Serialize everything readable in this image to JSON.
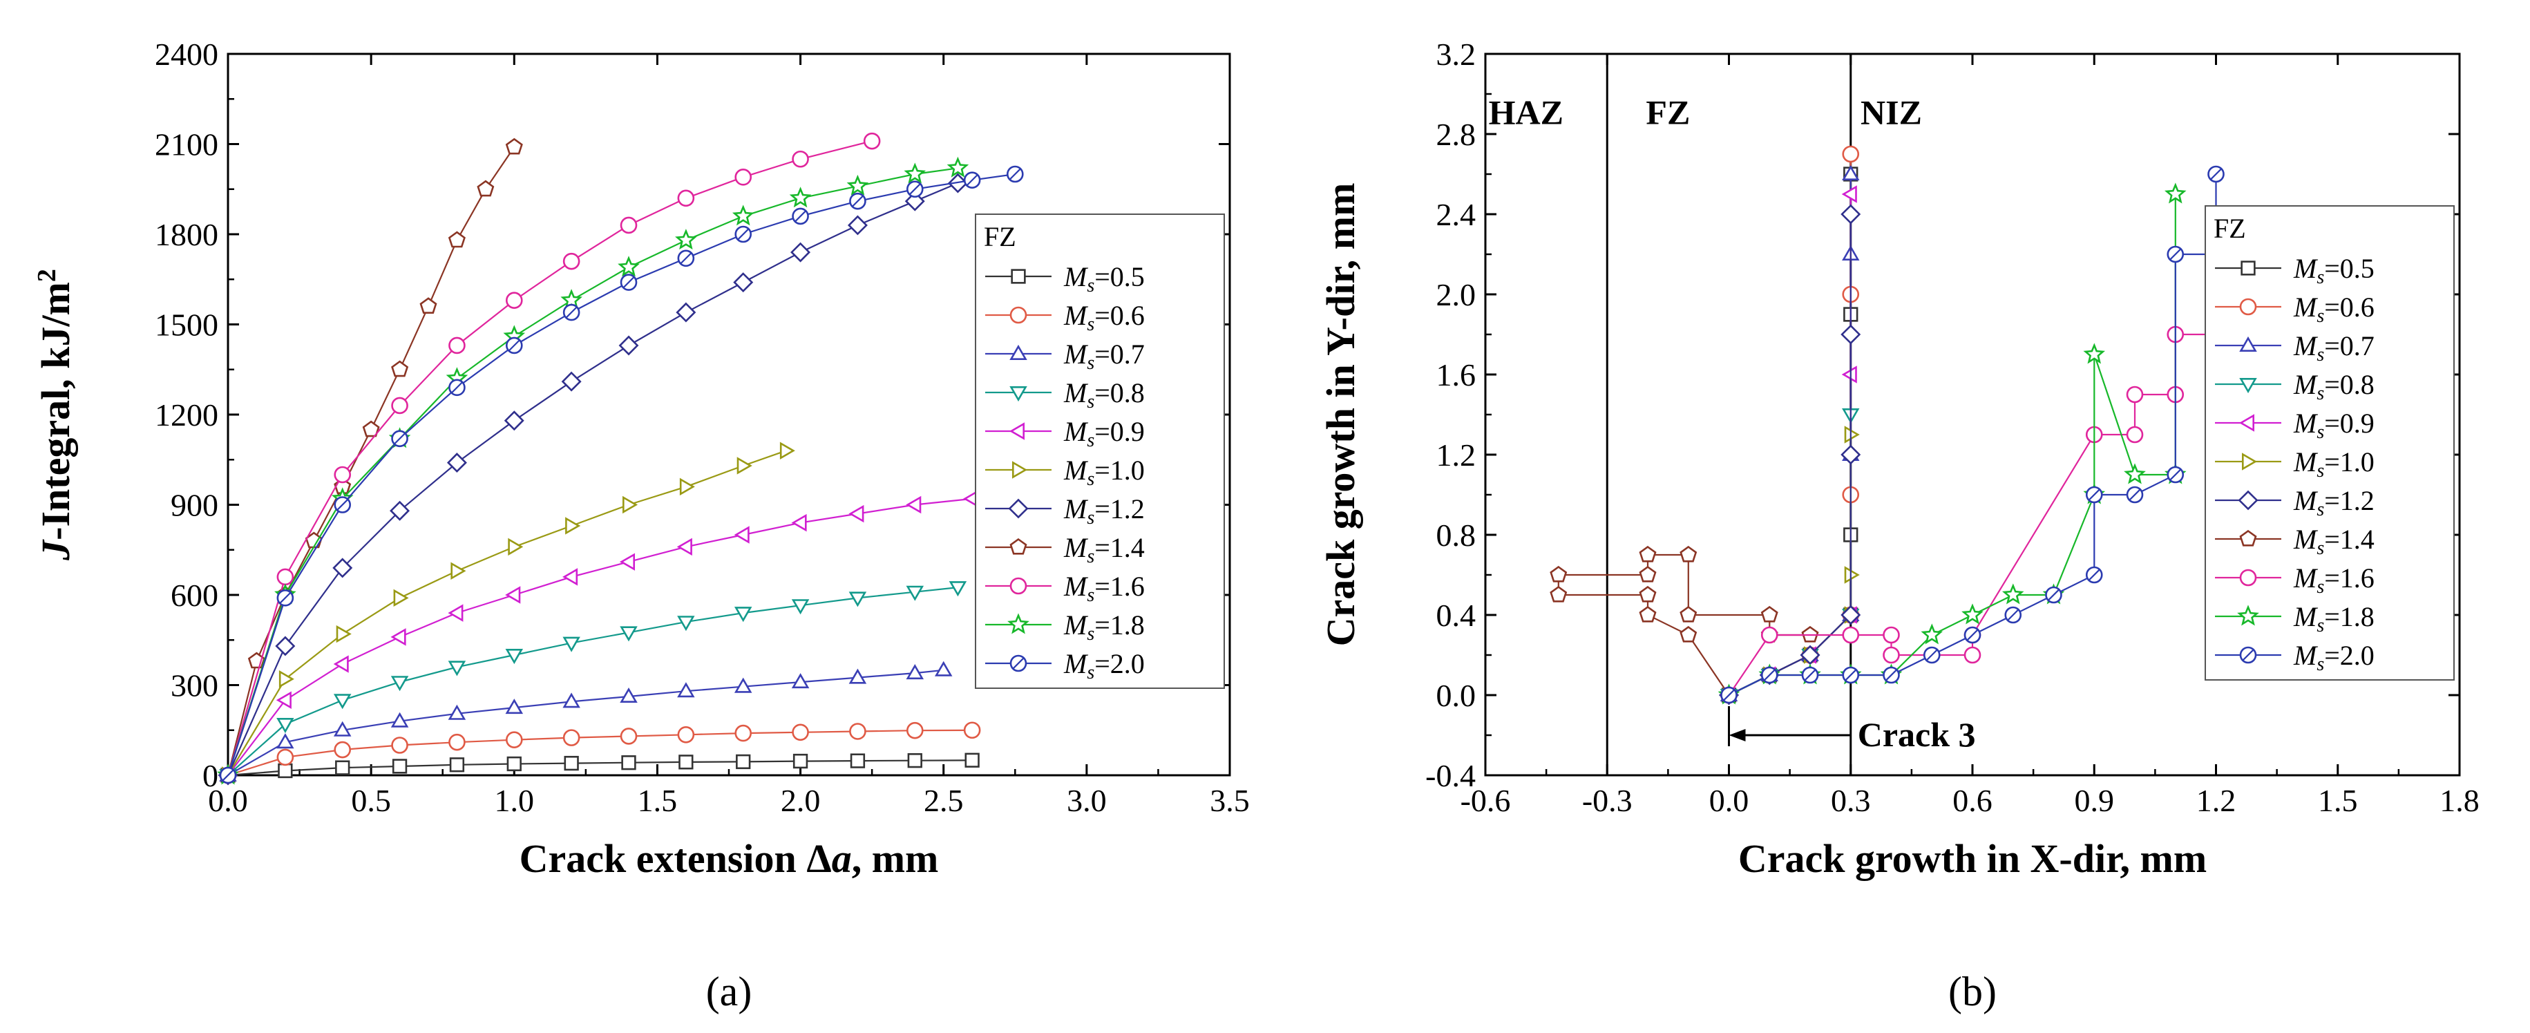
{
  "figure_labels": {
    "a": "(a)",
    "b": "(b)"
  },
  "colors": {
    "0.5": "#333333",
    "0.6": "#e05a45",
    "0.7": "#3a3fb5",
    "0.8": "#139a8c",
    "0.9": "#d11fd1",
    "1.0": "#9a9a14",
    "1.2": "#2f2f8c",
    "1.4": "#8b3524",
    "1.6": "#e0259c",
    "1.8": "#17b82a",
    "2.0": "#2b3bb0"
  },
  "chart_data": [
    {
      "id": "a",
      "type": "line",
      "title": "",
      "xlabel": "Crack extension Δa, mm",
      "ylabel": "J-Integral, kJ/m2",
      "xlim": [
        0.0,
        3.5
      ],
      "ylim": [
        0,
        2400
      ],
      "xticks": [
        "0.0",
        "0.5",
        "1.0",
        "1.5",
        "2.0",
        "2.5",
        "3.0",
        "3.5"
      ],
      "yticks": [
        "0",
        "300",
        "600",
        "900",
        "1200",
        "1500",
        "1800",
        "2100",
        "2400"
      ],
      "legend": {
        "title": "FZ",
        "position": "right"
      },
      "series": [
        {
          "name": "Ms=0.5",
          "ms": "0.5",
          "marker": "square",
          "x": [
            0,
            0.2,
            0.4,
            0.6,
            0.8,
            1.0,
            1.2,
            1.4,
            1.6,
            1.8,
            2.0,
            2.2,
            2.4,
            2.6
          ],
          "y": [
            0,
            15,
            25,
            30,
            35,
            38,
            40,
            42,
            44,
            45,
            47,
            48,
            49,
            50
          ]
        },
        {
          "name": "Ms=0.6",
          "ms": "0.6",
          "marker": "circle",
          "x": [
            0,
            0.2,
            0.4,
            0.6,
            0.8,
            1.0,
            1.2,
            1.4,
            1.6,
            1.8,
            2.0,
            2.2,
            2.4,
            2.6
          ],
          "y": [
            0,
            60,
            85,
            100,
            110,
            118,
            125,
            130,
            135,
            140,
            143,
            146,
            149,
            150
          ]
        },
        {
          "name": "Ms=0.7",
          "ms": "0.7",
          "marker": "triangle-up",
          "x": [
            0,
            0.2,
            0.4,
            0.6,
            0.8,
            1.0,
            1.2,
            1.4,
            1.6,
            1.8,
            2.0,
            2.2,
            2.4,
            2.5
          ],
          "y": [
            0,
            110,
            150,
            180,
            205,
            225,
            245,
            262,
            280,
            295,
            310,
            325,
            340,
            350
          ]
        },
        {
          "name": "Ms=0.8",
          "ms": "0.8",
          "marker": "triangle-down",
          "x": [
            0,
            0.2,
            0.4,
            0.6,
            0.8,
            1.0,
            1.2,
            1.4,
            1.6,
            1.8,
            2.0,
            2.2,
            2.4,
            2.55
          ],
          "y": [
            0,
            170,
            250,
            310,
            360,
            400,
            440,
            475,
            510,
            540,
            565,
            590,
            610,
            625
          ]
        },
        {
          "name": "Ms=0.9",
          "ms": "0.9",
          "marker": "triangle-left",
          "x": [
            0,
            0.2,
            0.4,
            0.6,
            0.8,
            1.0,
            1.2,
            1.4,
            1.6,
            1.8,
            2.0,
            2.2,
            2.4,
            2.6
          ],
          "y": [
            0,
            250,
            370,
            460,
            540,
            600,
            660,
            710,
            760,
            800,
            840,
            870,
            900,
            920
          ]
        },
        {
          "name": "Ms=1.0",
          "ms": "1.0",
          "marker": "triangle-right",
          "x": [
            0,
            0.2,
            0.4,
            0.6,
            0.8,
            1.0,
            1.2,
            1.4,
            1.6,
            1.8,
            1.95
          ],
          "y": [
            0,
            320,
            470,
            590,
            680,
            760,
            830,
            900,
            960,
            1030,
            1080
          ]
        },
        {
          "name": "Ms=1.2",
          "ms": "1.2",
          "marker": "diamond",
          "x": [
            0,
            0.2,
            0.4,
            0.6,
            0.8,
            1.0,
            1.2,
            1.4,
            1.6,
            1.8,
            2.0,
            2.2,
            2.4,
            2.55
          ],
          "y": [
            0,
            430,
            690,
            880,
            1040,
            1180,
            1310,
            1430,
            1540,
            1640,
            1740,
            1830,
            1910,
            1970
          ]
        },
        {
          "name": "Ms=1.4",
          "ms": "1.4",
          "marker": "pentagon",
          "x": [
            0,
            0.1,
            0.2,
            0.3,
            0.4,
            0.5,
            0.6,
            0.7,
            0.8,
            0.9,
            1.0
          ],
          "y": [
            0,
            380,
            600,
            780,
            960,
            1150,
            1350,
            1560,
            1780,
            1950,
            2090
          ]
        },
        {
          "name": "Ms=1.6",
          "ms": "1.6",
          "marker": "circle",
          "x": [
            0,
            0.2,
            0.4,
            0.6,
            0.8,
            1.0,
            1.2,
            1.4,
            1.6,
            1.8,
            2.0,
            2.25
          ],
          "y": [
            0,
            660,
            1000,
            1230,
            1430,
            1580,
            1710,
            1830,
            1920,
            1990,
            2050,
            2110
          ]
        },
        {
          "name": "Ms=1.8",
          "ms": "1.8",
          "marker": "star",
          "x": [
            0,
            0.2,
            0.4,
            0.6,
            0.8,
            1.0,
            1.2,
            1.4,
            1.6,
            1.8,
            2.0,
            2.2,
            2.4,
            2.55
          ],
          "y": [
            0,
            600,
            920,
            1120,
            1320,
            1460,
            1580,
            1690,
            1780,
            1860,
            1920,
            1960,
            2000,
            2020
          ]
        },
        {
          "name": "Ms=2.0",
          "ms": "2.0",
          "marker": "circle-dot",
          "x": [
            0,
            0.2,
            0.4,
            0.6,
            0.8,
            1.0,
            1.2,
            1.4,
            1.6,
            1.8,
            2.0,
            2.2,
            2.4,
            2.6,
            2.75
          ],
          "y": [
            0,
            590,
            900,
            1120,
            1290,
            1430,
            1540,
            1640,
            1720,
            1800,
            1860,
            1910,
            1950,
            1980,
            2000
          ]
        }
      ]
    },
    {
      "id": "b",
      "type": "line",
      "title": "",
      "xlabel": "Crack growth in X-dir, mm",
      "ylabel": "Crack growth in Y-dir, mm",
      "xlim": [
        -0.6,
        1.8
      ],
      "ylim": [
        -0.4,
        3.2
      ],
      "xticks": [
        "-0.6",
        "-0.3",
        "0.0",
        "0.3",
        "0.6",
        "0.9",
        "1.2",
        "1.5",
        "1.8"
      ],
      "yticks": [
        "-0.4",
        "0.0",
        "0.4",
        "0.8",
        "1.2",
        "1.6",
        "2.0",
        "2.4",
        "2.8",
        "3.2"
      ],
      "boundaries_x": [
        -0.3,
        0.3
      ],
      "regions": [
        {
          "label": "HAZ",
          "x": -0.5,
          "y": 2.85
        },
        {
          "label": "FZ",
          "x": -0.15,
          "y": 2.85
        },
        {
          "label": "NIZ",
          "x": 0.4,
          "y": 2.85
        }
      ],
      "annotation": {
        "text": "Crack 3",
        "arrow_from": [
          0.3,
          -0.2
        ],
        "arrow_to": [
          0.0,
          -0.2
        ],
        "tick_x": 0.0
      },
      "legend": {
        "title": "FZ",
        "position": "right"
      },
      "series": [
        {
          "name": "Ms=0.5",
          "ms": "0.5",
          "marker": "square",
          "x": [
            0,
            0.1,
            0.2,
            0.3,
            0.3,
            0.3,
            0.3
          ],
          "y": [
            0,
            0.1,
            0.2,
            0.4,
            0.8,
            1.9,
            2.6
          ]
        },
        {
          "name": "Ms=0.6",
          "ms": "0.6",
          "marker": "circle",
          "x": [
            0,
            0.1,
            0.2,
            0.3,
            0.3,
            0.3,
            0.3
          ],
          "y": [
            0,
            0.1,
            0.2,
            0.4,
            1.0,
            2.0,
            2.7
          ]
        },
        {
          "name": "Ms=0.7",
          "ms": "0.7",
          "marker": "triangle-up",
          "x": [
            0,
            0.1,
            0.2,
            0.3,
            0.3,
            0.3,
            0.3
          ],
          "y": [
            0,
            0.1,
            0.2,
            0.4,
            1.2,
            2.2,
            2.6
          ]
        },
        {
          "name": "Ms=0.8",
          "ms": "0.8",
          "marker": "triangle-down",
          "x": [
            0,
            0.1,
            0.2,
            0.3,
            0.3
          ],
          "y": [
            0,
            0.1,
            0.2,
            0.4,
            1.4
          ]
        },
        {
          "name": "Ms=0.9",
          "ms": "0.9",
          "marker": "triangle-left",
          "x": [
            0,
            0.1,
            0.2,
            0.3,
            0.3,
            0.3
          ],
          "y": [
            0,
            0.1,
            0.2,
            0.4,
            1.6,
            2.5
          ]
        },
        {
          "name": "Ms=1.0",
          "ms": "1.0",
          "marker": "triangle-right",
          "x": [
            0,
            0.1,
            0.2,
            0.3,
            0.3,
            0.3
          ],
          "y": [
            0,
            0.1,
            0.2,
            0.4,
            0.6,
            1.3
          ]
        },
        {
          "name": "Ms=1.2",
          "ms": "1.2",
          "marker": "diamond",
          "x": [
            0,
            0.1,
            0.2,
            0.3,
            0.3,
            0.3,
            0.3
          ],
          "y": [
            0,
            0.1,
            0.2,
            0.4,
            1.2,
            1.8,
            2.4
          ]
        },
        {
          "name": "Ms=1.4",
          "ms": "1.4",
          "marker": "pentagon",
          "x": [
            0,
            -0.1,
            -0.2,
            -0.2,
            -0.42,
            -0.42,
            -0.2,
            -0.2,
            -0.1,
            -0.1,
            0.1,
            0.1,
            0.2
          ],
          "y": [
            0,
            0.3,
            0.4,
            0.5,
            0.5,
            0.6,
            0.6,
            0.7,
            0.7,
            0.4,
            0.4,
            0.3,
            0.3
          ]
        },
        {
          "name": "Ms=1.6",
          "ms": "1.6",
          "marker": "circle",
          "x": [
            0,
            0.1,
            0.3,
            0.4,
            0.4,
            0.6,
            0.6,
            0.9,
            1.0,
            1.0,
            1.1,
            1.1,
            1.2,
            1.2
          ],
          "y": [
            0,
            0.3,
            0.3,
            0.3,
            0.2,
            0.2,
            0.3,
            1.3,
            1.3,
            1.5,
            1.5,
            1.8,
            1.8,
            2.1
          ]
        },
        {
          "name": "Ms=1.8",
          "ms": "1.8",
          "marker": "star",
          "x": [
            0,
            0.1,
            0.2,
            0.3,
            0.4,
            0.5,
            0.6,
            0.7,
            0.8,
            0.9,
            0.9,
            1.0,
            1.1,
            1.1
          ],
          "y": [
            0,
            0.1,
            0.1,
            0.1,
            0.1,
            0.3,
            0.4,
            0.5,
            0.5,
            1.0,
            1.7,
            1.1,
            1.1,
            2.5
          ]
        },
        {
          "name": "Ms=2.0",
          "ms": "2.0",
          "marker": "circle-dot",
          "x": [
            0,
            0.1,
            0.2,
            0.3,
            0.4,
            0.5,
            0.6,
            0.7,
            0.8,
            0.9,
            0.9,
            1.0,
            1.1,
            1.1,
            1.2,
            1.2
          ],
          "y": [
            0,
            0.1,
            0.1,
            0.1,
            0.1,
            0.2,
            0.3,
            0.4,
            0.5,
            0.6,
            1.0,
            1.0,
            1.1,
            2.2,
            2.2,
            2.6
          ]
        }
      ]
    }
  ]
}
